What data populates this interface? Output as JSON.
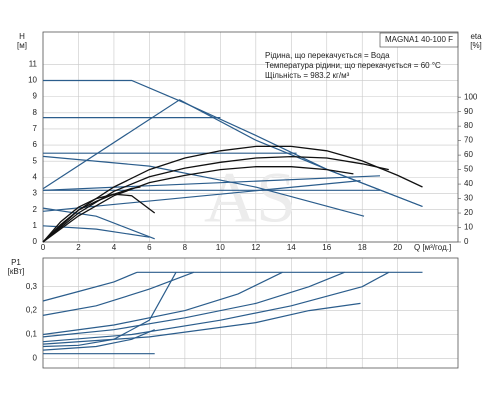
{
  "chart_data": [
    {
      "type": "line",
      "ylabel": [
        "H",
        "[м]"
      ],
      "y2label": [
        "eta",
        "[%]"
      ],
      "xlabel": "Q [м³/год.]",
      "legend_title": "MAGNA1 40-100 F",
      "annotations": [
        "Рідина, що перекачується = Вода",
        "Температура рідини, що перекачується = 60 °C",
        "Щільність = 983.2 кг/м³"
      ],
      "watermark": "AS",
      "grid": true,
      "xlim": [
        0,
        23.4
      ],
      "xticks": [
        0,
        2,
        4,
        6,
        8,
        10,
        12,
        14,
        16,
        18,
        20
      ],
      "ylim": [
        0,
        13
      ],
      "yticks": [
        0,
        1,
        2,
        3,
        4,
        5,
        6,
        7,
        8,
        9,
        10,
        11
      ],
      "y2lim": [
        0,
        145
      ],
      "y2ticks": [
        0,
        10,
        20,
        30,
        40,
        50,
        60,
        70,
        80,
        90,
        100
      ],
      "series": [
        {
          "color": "#2b5d8c",
          "x": [
            0,
            5,
            8,
            12,
            16,
            21.4
          ],
          "values": [
            10,
            10,
            8.6,
            6.6,
            4.5,
            2.2
          ]
        },
        {
          "color": "#2b5d8c",
          "x": [
            0,
            10
          ],
          "values": [
            7.7,
            7.7
          ]
        },
        {
          "color": "#2b5d8c",
          "x": [
            0,
            7.7,
            12,
            16,
            21.4
          ],
          "values": [
            3.3,
            8.8,
            6.3,
            4.5,
            2.2
          ]
        },
        {
          "color": "#2b5d8c",
          "x": [
            0,
            14.3
          ],
          "values": [
            5.5,
            5.5
          ]
        },
        {
          "color": "#2b5d8c",
          "x": [
            0,
            6,
            12,
            18.1
          ],
          "values": [
            5.3,
            4.7,
            3.4,
            1.6
          ]
        },
        {
          "color": "#2b5d8c",
          "x": [
            0,
            19
          ],
          "values": [
            3.2,
            4.1
          ]
        },
        {
          "color": "#2b5d8c",
          "x": [
            0,
            19
          ],
          "values": [
            3.2,
            3.2
          ]
        },
        {
          "color": "#2b5d8c",
          "x": [
            0,
            17.9
          ],
          "values": [
            1.9,
            3.8
          ]
        },
        {
          "color": "#2b5d8c",
          "x": [
            0,
            3,
            6.3
          ],
          "values": [
            2.1,
            1.6,
            0.2
          ]
        },
        {
          "color": "#2b5d8c",
          "x": [
            0,
            3,
            6
          ],
          "values": [
            1,
            0.8,
            0.3
          ]
        },
        {
          "color": "#111111",
          "axis": "y2",
          "x": [
            0,
            2,
            4,
            6,
            8,
            10,
            12,
            14,
            16,
            18,
            20,
            21.4
          ],
          "values": [
            0,
            22,
            38,
            50,
            58,
            63,
            66,
            66,
            63,
            56,
            46,
            38
          ]
        },
        {
          "color": "#111111",
          "axis": "y2",
          "x": [
            0,
            2,
            4,
            6,
            8,
            10,
            12,
            14,
            16,
            18,
            19.5
          ],
          "values": [
            0,
            20,
            35,
            45,
            51,
            55,
            58,
            59,
            58,
            54,
            50
          ]
        },
        {
          "color": "#111111",
          "axis": "y2",
          "x": [
            0,
            2,
            4,
            6,
            8,
            10,
            12,
            14,
            16,
            17.5
          ],
          "values": [
            0,
            18,
            32,
            41,
            46,
            50,
            52,
            52,
            50,
            47
          ]
        },
        {
          "color": "#111111",
          "axis": "y2",
          "x": [
            0,
            1,
            2,
            3,
            4,
            5,
            5.5
          ],
          "values": [
            0,
            12,
            22,
            28,
            33,
            37,
            38
          ]
        },
        {
          "color": "#111111",
          "axis": "y2",
          "x": [
            0,
            1,
            2,
            3,
            4,
            5,
            6.3
          ],
          "values": [
            0,
            14,
            24,
            30,
            33,
            32,
            20
          ]
        }
      ]
    },
    {
      "type": "line",
      "ylabel": [
        "P1",
        "[кВт]"
      ],
      "grid": true,
      "xlim": [
        0,
        23.4
      ],
      "xticks": [
        0,
        2,
        4,
        6,
        8,
        10,
        12,
        14,
        16,
        18,
        20
      ],
      "ylim": [
        -0.04,
        0.42
      ],
      "yticks": [
        0,
        {
          "value": 0.1,
          "label": "0,1"
        },
        {
          "value": 0.2,
          "label": "0,2"
        },
        {
          "value": 0.3,
          "label": "0,3"
        }
      ],
      "series": [
        {
          "color": "#2b5d8c",
          "x": [
            5.3,
            21.4
          ],
          "values": [
            0.36,
            0.36
          ]
        },
        {
          "color": "#2b5d8c",
          "x": [
            0,
            2,
            4,
            5.3
          ],
          "values": [
            0.24,
            0.28,
            0.32,
            0.36
          ]
        },
        {
          "color": "#2b5d8c",
          "x": [
            0,
            3,
            6,
            8.5
          ],
          "values": [
            0.18,
            0.22,
            0.29,
            0.36
          ]
        },
        {
          "color": "#2b5d8c",
          "x": [
            0,
            4,
            8,
            11,
            13.5
          ],
          "values": [
            0.1,
            0.14,
            0.2,
            0.27,
            0.36
          ]
        },
        {
          "color": "#2b5d8c",
          "x": [
            0,
            4,
            8,
            12,
            15,
            17
          ],
          "values": [
            0.09,
            0.12,
            0.17,
            0.23,
            0.3,
            0.36
          ]
        },
        {
          "color": "#2b5d8c",
          "x": [
            0,
            5,
            10,
            14,
            18,
            19.5
          ],
          "values": [
            0.07,
            0.1,
            0.16,
            0.22,
            0.3,
            0.36
          ]
        },
        {
          "color": "#2b5d8c",
          "x": [
            0,
            6,
            12,
            15,
            17.9
          ],
          "values": [
            0.06,
            0.09,
            0.15,
            0.2,
            0.23
          ]
        },
        {
          "color": "#2b5d8c",
          "x": [
            0,
            2,
            4,
            6,
            7.5
          ],
          "values": [
            0.05,
            0.055,
            0.08,
            0.16,
            0.36
          ]
        },
        {
          "color": "#2b5d8c",
          "x": [
            0,
            3,
            5,
            6.3
          ],
          "values": [
            0.035,
            0.05,
            0.08,
            0.12
          ]
        },
        {
          "color": "#2b5d8c",
          "x": [
            0,
            6.3
          ],
          "values": [
            0.02,
            0.02
          ]
        }
      ]
    }
  ]
}
